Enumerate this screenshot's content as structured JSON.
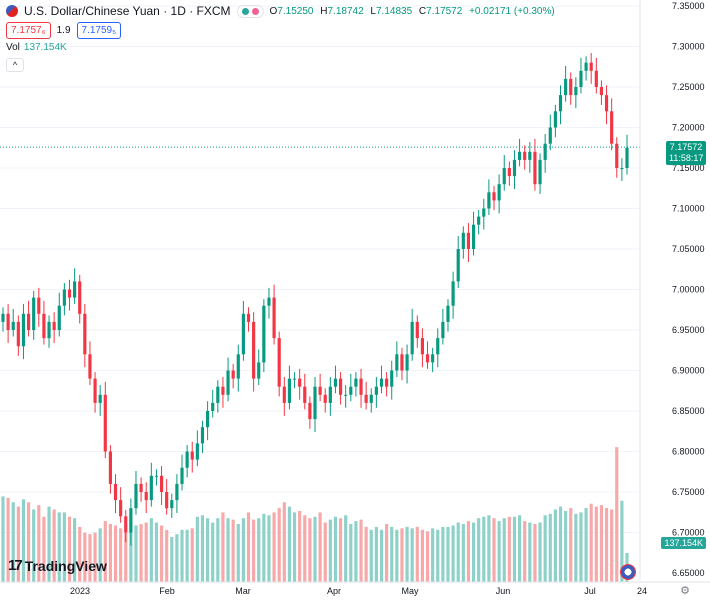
{
  "header": {
    "symbol_title": "U.S. Dollar/Chinese Yuan · 1D · FXCM",
    "ohlc": {
      "o_label": "O",
      "o": "7.15250",
      "h_label": "H",
      "h": "7.18742",
      "l_label": "L",
      "l": "7.14835",
      "c_label": "C",
      "c": "7.17572",
      "change": "+0.02171 (+0.30%)"
    },
    "sell_price": "7.1757₆",
    "spread": "1.9",
    "buy_price": "7.1759₅",
    "vol_label": "Vol",
    "vol_value": "137.154K",
    "collapse_glyph": "^"
  },
  "branding": {
    "logo_text": "TradingView",
    "logo_mark": "17"
  },
  "tags": {
    "price": "7.17572",
    "countdown": "11:58:17",
    "vol": "137.154K"
  },
  "icons": {
    "settings": "gear-icon",
    "currency_flag": "flag-icon"
  },
  "colors": {
    "up": "#089981",
    "down": "#f23645",
    "vol_up": "#8dd1c9",
    "vol_down": "#f7a9a9",
    "grid": "#f0f3fa"
  },
  "chart_data": {
    "type": "candlestick",
    "y_axis": {
      "range": [
        6.65,
        7.35
      ],
      "ticks": [
        6.65,
        6.7,
        6.75,
        6.8,
        6.85,
        6.9,
        6.95,
        7.0,
        7.05,
        7.1,
        7.15,
        7.2,
        7.25,
        7.3,
        7.35
      ]
    },
    "x_axis": {
      "labels": [
        "2023",
        "Feb",
        "Mar",
        "Apr",
        "May",
        "Jun",
        "Jul",
        "24"
      ]
    },
    "last_price": 7.17572,
    "closes": [
      6.97,
      6.95,
      6.96,
      6.93,
      6.97,
      6.95,
      6.99,
      6.97,
      6.94,
      6.96,
      6.95,
      6.98,
      7.0,
      6.99,
      7.01,
      6.97,
      6.92,
      6.89,
      6.86,
      6.87,
      6.8,
      6.76,
      6.74,
      6.72,
      6.7,
      6.73,
      6.76,
      6.75,
      6.74,
      6.77,
      6.77,
      6.75,
      6.73,
      6.74,
      6.76,
      6.78,
      6.8,
      6.79,
      6.81,
      6.83,
      6.85,
      6.86,
      6.88,
      6.87,
      6.9,
      6.89,
      6.92,
      6.97,
      6.96,
      6.89,
      6.91,
      6.98,
      6.99,
      6.94,
      6.88,
      6.86,
      6.89,
      6.89,
      6.88,
      6.86,
      6.84,
      6.88,
      6.87,
      6.86,
      6.88,
      6.89,
      6.87,
      6.87,
      6.88,
      6.89,
      6.87,
      6.86,
      6.87,
      6.88,
      6.89,
      6.88,
      6.9,
      6.92,
      6.9,
      6.92,
      6.96,
      6.94,
      6.92,
      6.91,
      6.92,
      6.94,
      6.96,
      6.98,
      7.01,
      7.05,
      7.07,
      7.05,
      7.08,
      7.09,
      7.1,
      7.12,
      7.11,
      7.13,
      7.15,
      7.14,
      7.16,
      7.17,
      7.16,
      7.17,
      7.13,
      7.16,
      7.18,
      7.2,
      7.22,
      7.24,
      7.26,
      7.24,
      7.25,
      7.27,
      7.28,
      7.27,
      7.25,
      7.24,
      7.22,
      7.18,
      7.15,
      7.15,
      7.175
    ],
    "volumes": [
      0.59,
      0.58,
      0.55,
      0.52,
      0.57,
      0.55,
      0.5,
      0.53,
      0.45,
      0.52,
      0.5,
      0.48,
      0.48,
      0.45,
      0.44,
      0.38,
      0.34,
      0.33,
      0.34,
      0.37,
      0.42,
      0.4,
      0.39,
      0.37,
      0.34,
      0.35,
      0.39,
      0.4,
      0.41,
      0.44,
      0.41,
      0.39,
      0.36,
      0.31,
      0.33,
      0.36,
      0.36,
      0.37,
      0.45,
      0.46,
      0.44,
      0.41,
      0.44,
      0.48,
      0.44,
      0.43,
      0.4,
      0.44,
      0.48,
      0.43,
      0.44,
      0.47,
      0.46,
      0.48,
      0.51,
      0.55,
      0.52,
      0.48,
      0.49,
      0.46,
      0.44,
      0.45,
      0.48,
      0.41,
      0.43,
      0.45,
      0.44,
      0.46,
      0.4,
      0.42,
      0.43,
      0.38,
      0.36,
      0.38,
      0.36,
      0.4,
      0.38,
      0.36,
      0.37,
      0.38,
      0.37,
      0.38,
      0.36,
      0.35,
      0.37,
      0.36,
      0.38,
      0.38,
      0.39,
      0.41,
      0.4,
      0.42,
      0.41,
      0.44,
      0.45,
      0.46,
      0.44,
      0.42,
      0.44,
      0.45,
      0.45,
      0.46,
      0.42,
      0.41,
      0.4,
      0.41,
      0.46,
      0.47,
      0.5,
      0.52,
      0.49,
      0.51,
      0.47,
      0.48,
      0.51,
      0.54,
      0.52,
      0.53,
      0.51,
      0.5,
      0.93,
      0.56,
      0.2
    ]
  }
}
